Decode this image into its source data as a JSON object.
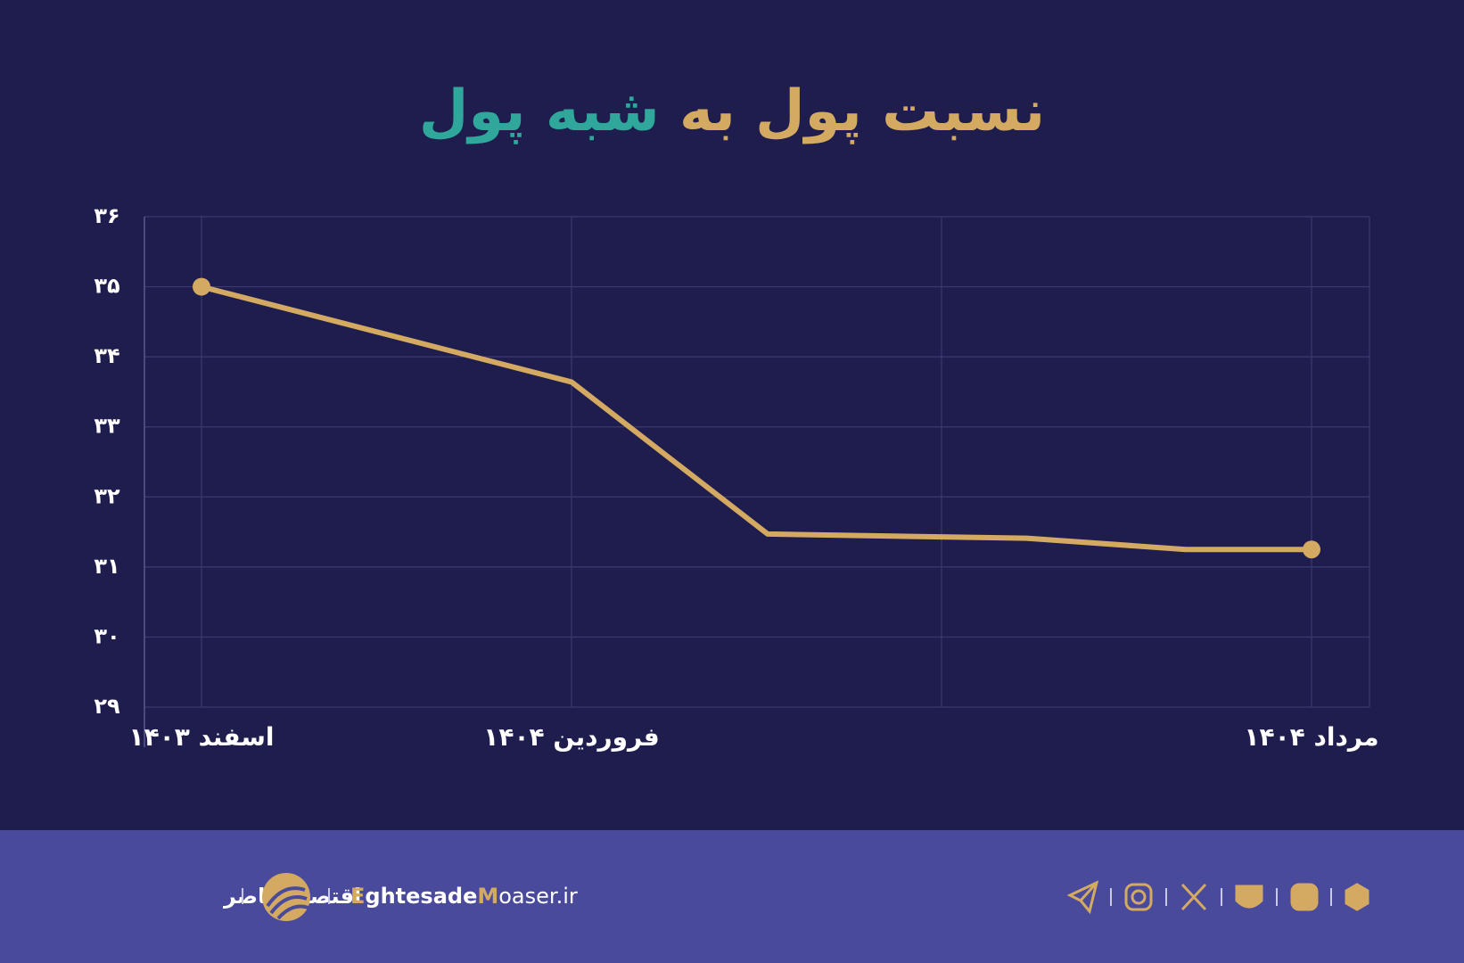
{
  "chart_data": {
    "type": "line",
    "title": "نسبت پول به",
    "title_highlight": "شبه پول",
    "x": [
      0,
      1,
      1.53,
      2.23,
      2.66,
      3
    ],
    "xlim": [
      0,
      3
    ],
    "xticks": [
      {
        "value": 0,
        "label": "اسفند ۱۴۰۳"
      },
      {
        "value": 1,
        "label": "فروردین ۱۴۰۴"
      },
      {
        "value": 3,
        "label": "مرداد ۱۴۰۴"
      }
    ],
    "xgrid": [
      0,
      1,
      2,
      3
    ],
    "series": [
      {
        "color": "#d4aa62",
        "values": [
          35.0,
          33.64,
          31.47,
          31.41,
          31.25,
          31.25
        ]
      }
    ],
    "ylim": [
      29,
      36
    ],
    "yticks": [
      {
        "value": 29,
        "label": "۲۹"
      },
      {
        "value": 30,
        "label": "۳۰"
      },
      {
        "value": 31,
        "label": "۳۱"
      },
      {
        "value": 32,
        "label": "۳۲"
      },
      {
        "value": 33,
        "label": "۳۳"
      },
      {
        "value": 34,
        "label": "۳۴"
      },
      {
        "value": 35,
        "label": "۳۵"
      },
      {
        "value": 36,
        "label": "۳۶"
      }
    ],
    "grid": true
  },
  "footer": {
    "brand": "اقتصادمعاصر",
    "site_parts": [
      "E",
      "ghtesade",
      "M",
      "oaser.ir"
    ]
  }
}
